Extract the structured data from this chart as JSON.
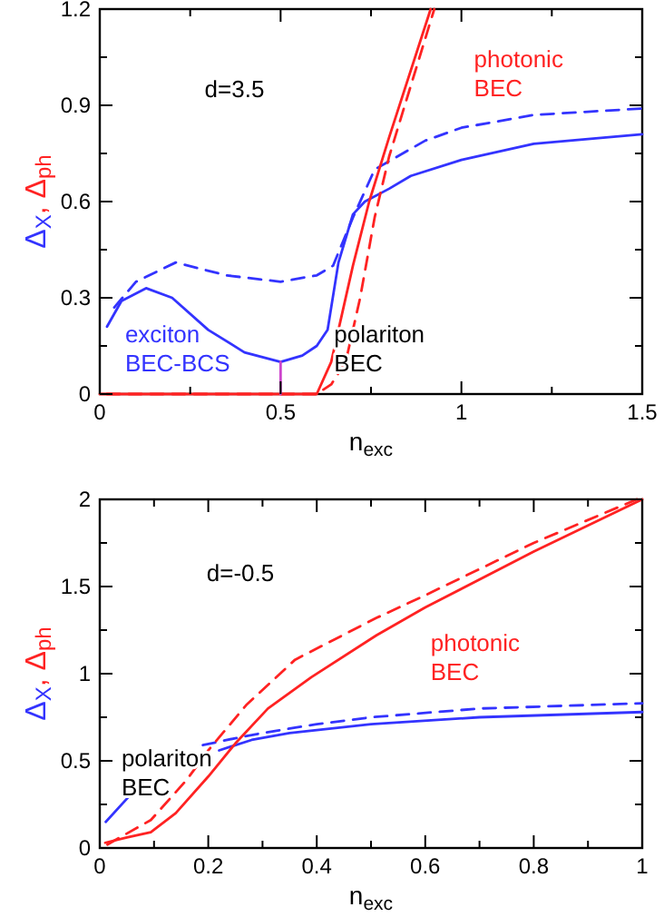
{
  "chart_data": [
    {
      "type": "line",
      "xlabel": "n$_{exc}$",
      "ylabel": "Δ$_{X}$, Δ$_{ph}$",
      "xlim": [
        0,
        1.5
      ],
      "ylim": [
        0,
        1.2
      ],
      "xticks": [
        0,
        {
          "value": 0.25,
          "label": null
        },
        0.5,
        {
          "value": 0.75,
          "label": null
        },
        1,
        {
          "value": 1.25,
          "label": null
        },
        1.5
      ],
      "yticks": [
        0,
        {
          "value": 0.15,
          "label": null
        },
        0.3,
        {
          "value": 0.45,
          "label": null
        },
        0.6,
        {
          "value": 0.75,
          "label": null
        },
        0.9,
        {
          "value": 1.05,
          "label": null
        },
        1.2
      ],
      "grid": false,
      "series": [
        {
          "color": "#3333ff",
          "line_style": "solid",
          "x": [
            0.02,
            0.06,
            0.128,
            0.2,
            0.3,
            0.4,
            0.5,
            0.56,
            0.6,
            0.63,
            0.66,
            0.7,
            0.733,
            0.8,
            0.86,
            1.0,
            1.2,
            1.5
          ],
          "values": [
            0.21,
            0.29,
            0.33,
            0.3,
            0.2,
            0.13,
            0.1,
            0.12,
            0.15,
            0.2,
            0.41,
            0.56,
            0.6,
            0.64,
            0.68,
            0.73,
            0.78,
            0.81
          ]
        },
        {
          "color": "#3333ff",
          "line_style": "dashed",
          "x": [
            0.04,
            0.1,
            0.21,
            0.35,
            0.5,
            0.6,
            0.645,
            0.7,
            0.76,
            0.9,
            1.0,
            1.2,
            1.5
          ],
          "values": [
            0.27,
            0.35,
            0.41,
            0.37,
            0.35,
            0.37,
            0.4,
            0.55,
            0.7,
            0.79,
            0.83,
            0.87,
            0.89
          ]
        },
        {
          "color": "#ff2222",
          "line_style": "solid",
          "x": [
            0,
            0.6,
            0.64,
            0.67,
            0.7,
            0.745,
            0.8,
            0.915
          ],
          "values": [
            0,
            0,
            0.1,
            0.25,
            0.4,
            0.6,
            0.8,
            1.2
          ]
        },
        {
          "color": "#ff2222",
          "line_style": "dashed",
          "x": [
            0.02,
            0.6,
            0.64,
            0.68,
            0.72,
            0.76,
            0.8,
            0.925
          ],
          "values": [
            0,
            0,
            0.03,
            0.1,
            0.3,
            0.55,
            0.74,
            1.2
          ]
        },
        {
          "color": "#cc44cc",
          "line_style": "solid",
          "x": [
            0.5,
            0.5
          ],
          "values": [
            0,
            0.1
          ]
        }
      ],
      "annotations": [
        "d=3.5",
        "exciton\nBEC-BCS",
        "polariton\nBEC",
        "photonic\nBEC"
      ]
    },
    {
      "type": "line",
      "xlabel": "n$_{exc}$",
      "ylabel": "Δ$_{X}$, Δ$_{ph}$",
      "xlim": [
        0,
        1
      ],
      "ylim": [
        0,
        2
      ],
      "xticks": [
        0,
        {
          "value": 0.1,
          "label": null
        },
        0.2,
        {
          "value": 0.3,
          "label": null
        },
        0.4,
        {
          "value": 0.5,
          "label": null
        },
        0.6,
        {
          "value": 0.7,
          "label": null
        },
        0.8,
        {
          "value": 0.9,
          "label": null
        },
        1
      ],
      "yticks": [
        0,
        {
          "value": 0.25,
          "label": null
        },
        0.5,
        {
          "value": 0.75,
          "label": null
        },
        1,
        {
          "value": 1.25,
          "label": null
        },
        1.5,
        {
          "value": 1.75,
          "label": null
        },
        2
      ],
      "grid": false,
      "series": [
        {
          "color": "#3333ff",
          "line_style": "solid",
          "x": [
            0.011,
            0.052,
            0.1,
            0.22,
            0.28,
            0.35,
            0.5,
            0.7,
            1.0
          ],
          "values": [
            0.15,
            0.29,
            null,
            0.56,
            0.62,
            0.66,
            0.71,
            0.75,
            0.78
          ]
        },
        {
          "color": "#3333ff",
          "line_style": "dashed",
          "x": [
            0.19,
            0.25,
            0.3,
            0.4,
            0.5,
            0.7,
            1.0
          ],
          "values": [
            0.59,
            0.63,
            0.66,
            0.71,
            0.75,
            0.8,
            0.83
          ]
        },
        {
          "color": "#ff2222",
          "line_style": "solid",
          "x": [
            0.01,
            0.05,
            0.094,
            0.14,
            0.2,
            0.25,
            0.31,
            0.39,
            0.51,
            0.6,
            0.8,
            1.0
          ],
          "values": [
            0.03,
            0.06,
            0.09,
            0.2,
            0.41,
            0.6,
            0.8,
            0.98,
            1.22,
            1.38,
            1.7,
            2.0
          ]
        },
        {
          "color": "#ff2222",
          "line_style": "dashed",
          "x": [
            0.014,
            0.094,
            0.16,
            0.2,
            0.27,
            0.36,
            0.51,
            0.6,
            0.8,
            0.99
          ],
          "values": [
            0.02,
            0.16,
            0.39,
            0.56,
            0.82,
            1.08,
            1.32,
            1.45,
            1.75,
            2.0
          ]
        }
      ],
      "annotations": [
        "d=-0.5",
        "polariton\nBEC",
        "photonic\nBEC"
      ]
    }
  ]
}
